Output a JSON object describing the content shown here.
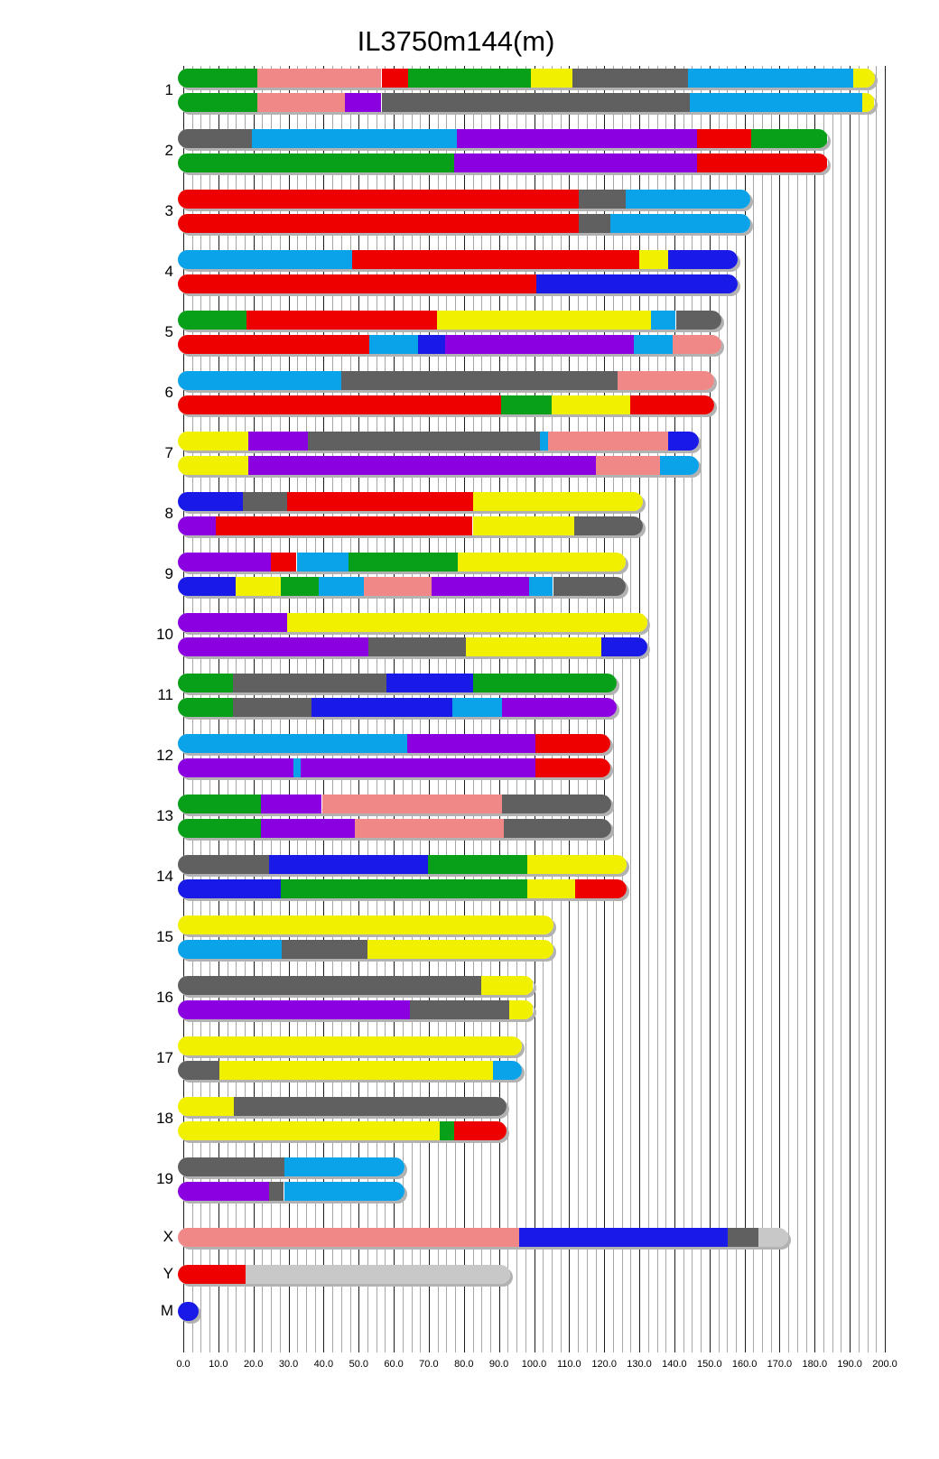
{
  "title": "IL3750m144(m)",
  "chart_data": {
    "type": "bar",
    "subtype": "genome-haplotype-ideogram",
    "x_axis": {
      "min": 0,
      "max": 200,
      "major_step": 10,
      "minor_step": 2.5,
      "tick_labels": [
        "0.0",
        "10.0",
        "20.0",
        "30.0",
        "40.0",
        "50.0",
        "60.0",
        "70.0",
        "80.0",
        "90.0",
        "100.0",
        "110.0",
        "120.0",
        "130.0",
        "140.0",
        "150.0",
        "160.0",
        "170.0",
        "180.0",
        "190.0",
        "200.0"
      ]
    },
    "palette": {
      "yellow": "#F0F000",
      "gray": "#606060",
      "pink": "#F08888",
      "blue": "#1A1AE8",
      "sky": "#0AA2E8",
      "green": "#08A018",
      "red": "#EE0000",
      "purple": "#8A00E0",
      "lightgray": "#C8C8C8"
    },
    "grid": true,
    "legend": false,
    "chromosomes": [
      {
        "name": "1",
        "length": 195.5,
        "bars": [
          [
            {
              "c": "green",
              "e": 21
            },
            {
              "c": "pink",
              "e": 56.5
            },
            {
              "c": "red",
              "e": 64
            },
            {
              "c": "green",
              "e": 99
            },
            {
              "c": "yellow",
              "e": 111
            },
            {
              "c": "gray",
              "e": 144
            },
            {
              "c": "sky",
              "e": 191
            },
            {
              "c": "yellow",
              "e": 195.5
            }
          ],
          [
            {
              "c": "green",
              "e": 21
            },
            {
              "c": "pink",
              "e": 46
            },
            {
              "c": "purple",
              "e": 56.5
            },
            {
              "c": "gray",
              "e": 144.5
            },
            {
              "c": "sky",
              "e": 193.5
            },
            {
              "c": "yellow",
              "e": 195.5
            }
          ]
        ]
      },
      {
        "name": "2",
        "length": 182.1,
        "bars": [
          [
            {
              "c": "gray",
              "e": 19.6
            },
            {
              "c": "sky",
              "e": 78
            },
            {
              "c": "purple",
              "e": 146.4
            },
            {
              "c": "red",
              "e": 161.8
            },
            {
              "c": "green",
              "e": 182.1
            }
          ],
          [
            {
              "c": "green",
              "e": 77.3
            },
            {
              "c": "purple",
              "e": 146.4
            },
            {
              "c": "red",
              "e": 182.1
            }
          ]
        ]
      },
      {
        "name": "3",
        "length": 160,
        "bars": [
          [
            {
              "c": "red",
              "e": 112.6
            },
            {
              "c": "gray",
              "e": 126.2
            },
            {
              "c": "sky",
              "e": 160
            }
          ],
          [
            {
              "c": "red",
              "e": 112.6
            },
            {
              "c": "gray",
              "e": 121.7
            },
            {
              "c": "sky",
              "e": 160
            }
          ]
        ]
      },
      {
        "name": "4",
        "length": 156.5,
        "bars": [
          [
            {
              "c": "sky",
              "e": 48.2
            },
            {
              "c": "red",
              "e": 129.9
            },
            {
              "c": "yellow",
              "e": 138.3
            },
            {
              "c": "blue",
              "e": 156.5
            }
          ],
          [
            {
              "c": "red",
              "e": 100.7
            },
            {
              "c": "blue",
              "e": 156.5
            }
          ]
        ]
      },
      {
        "name": "5",
        "length": 151.8,
        "bars": [
          [
            {
              "c": "green",
              "e": 18.1
            },
            {
              "c": "red",
              "e": 72.4
            },
            {
              "c": "yellow",
              "e": 133.4
            },
            {
              "c": "sky",
              "e": 140.4
            },
            {
              "c": "gray",
              "e": 151.8
            }
          ],
          [
            {
              "c": "red",
              "e": 53
            },
            {
              "c": "sky",
              "e": 67
            },
            {
              "c": "blue",
              "e": 74.7
            },
            {
              "c": "purple",
              "e": 128.5
            },
            {
              "c": "sky",
              "e": 139.5
            },
            {
              "c": "pink",
              "e": 151.8
            }
          ]
        ]
      },
      {
        "name": "6",
        "length": 149.7,
        "bars": [
          [
            {
              "c": "sky",
              "e": 45.1
            },
            {
              "c": "gray",
              "e": 123.7
            },
            {
              "c": "pink",
              "e": 149.7
            }
          ],
          [
            {
              "c": "red",
              "e": 90.6
            },
            {
              "c": "green",
              "e": 104.9
            },
            {
              "c": "yellow",
              "e": 127.3
            },
            {
              "c": "red",
              "e": 149.7
            }
          ]
        ]
      },
      {
        "name": "7",
        "length": 145.4,
        "bars": [
          [
            {
              "c": "yellow",
              "e": 18.4
            },
            {
              "c": "purple",
              "e": 35.6
            },
            {
              "c": "gray",
              "e": 101.6
            },
            {
              "c": "sky",
              "e": 104.1
            },
            {
              "c": "pink",
              "e": 138.2
            },
            {
              "c": "blue",
              "e": 145.4
            }
          ],
          [
            {
              "c": "yellow",
              "e": 18.4
            },
            {
              "c": "purple",
              "e": 117.6
            },
            {
              "c": "pink",
              "e": 136
            },
            {
              "c": "sky",
              "e": 145.4
            }
          ]
        ]
      },
      {
        "name": "8",
        "length": 129.4,
        "bars": [
          [
            {
              "c": "blue",
              "e": 17
            },
            {
              "c": "gray",
              "e": 29.6
            },
            {
              "c": "red",
              "e": 82.5
            },
            {
              "c": "yellow",
              "e": 129.4
            }
          ],
          [
            {
              "c": "purple",
              "e": 9.3
            },
            {
              "c": "red",
              "e": 82.5
            },
            {
              "c": "yellow",
              "e": 111.4
            },
            {
              "c": "gray",
              "e": 129.4
            }
          ]
        ]
      },
      {
        "name": "9",
        "length": 124.6,
        "bars": [
          [
            {
              "c": "purple",
              "e": 24.9
            },
            {
              "c": "red",
              "e": 32.3
            },
            {
              "c": "sky",
              "e": 47
            },
            {
              "c": "green",
              "e": 78.2
            },
            {
              "c": "yellow",
              "e": 124.6
            }
          ],
          [
            {
              "c": "blue",
              "e": 15
            },
            {
              "c": "yellow",
              "e": 27.8
            },
            {
              "c": "green",
              "e": 38.7
            },
            {
              "c": "sky",
              "e": 51.5
            },
            {
              "c": "pink",
              "e": 70.8
            },
            {
              "c": "purple",
              "e": 98.7
            },
            {
              "c": "sky",
              "e": 105.4
            },
            {
              "c": "gray",
              "e": 124.6
            }
          ]
        ]
      },
      {
        "name": "10",
        "length": 130.7,
        "bars": [
          [
            {
              "c": "purple",
              "e": 29.7
            },
            {
              "c": "yellow",
              "e": 130.7
            }
          ],
          [
            {
              "c": "purple",
              "e": 52.8
            },
            {
              "c": "gray",
              "e": 80.6
            },
            {
              "c": "yellow",
              "e": 119.1
            },
            {
              "c": "blue",
              "e": 130.7
            }
          ]
        ]
      },
      {
        "name": "11",
        "length": 122.1,
        "bars": [
          [
            {
              "c": "green",
              "e": 14.1
            },
            {
              "c": "gray",
              "e": 57.8
            },
            {
              "c": "blue",
              "e": 82.5
            },
            {
              "c": "green",
              "e": 122.1
            }
          ],
          [
            {
              "c": "green",
              "e": 14.1
            },
            {
              "c": "gray",
              "e": 36.5
            },
            {
              "c": "blue",
              "e": 76.7
            },
            {
              "c": "sky",
              "e": 90.9
            },
            {
              "c": "purple",
              "e": 122.1
            }
          ]
        ]
      },
      {
        "name": "12",
        "length": 120.1,
        "bars": [
          [
            {
              "c": "sky",
              "e": 63.9
            },
            {
              "c": "purple",
              "e": 100.3
            },
            {
              "c": "red",
              "e": 120.1
            }
          ],
          [
            {
              "c": "purple",
              "e": 31.5
            },
            {
              "c": "sky",
              "e": 33.4
            },
            {
              "c": "purple",
              "e": 100.3
            },
            {
              "c": "red",
              "e": 120.1
            }
          ]
        ]
      },
      {
        "name": "13",
        "length": 120.4,
        "bars": [
          [
            {
              "c": "green",
              "e": 22.1
            },
            {
              "c": "purple",
              "e": 39.5
            },
            {
              "c": "pink",
              "e": 90.9
            },
            {
              "c": "gray",
              "e": 120.4
            }
          ],
          [
            {
              "c": "green",
              "e": 22.1
            },
            {
              "c": "purple",
              "e": 48.8
            },
            {
              "c": "pink",
              "e": 91.3
            },
            {
              "c": "gray",
              "e": 120.4
            }
          ]
        ]
      },
      {
        "name": "14",
        "length": 124.9,
        "bars": [
          [
            {
              "c": "gray",
              "e": 24.4
            },
            {
              "c": "blue",
              "e": 69.7
            },
            {
              "c": "green",
              "e": 98
            },
            {
              "c": "yellow",
              "e": 124.9
            }
          ],
          [
            {
              "c": "blue",
              "e": 27.9
            },
            {
              "c": "green",
              "e": 98
            },
            {
              "c": "yellow",
              "e": 111.8
            },
            {
              "c": "red",
              "e": 124.9
            }
          ]
        ]
      },
      {
        "name": "15",
        "length": 104,
        "bars": [
          [
            {
              "c": "yellow",
              "e": 104
            }
          ],
          [
            {
              "c": "sky",
              "e": 28
            },
            {
              "c": "gray",
              "e": 52.4
            },
            {
              "c": "yellow",
              "e": 104
            }
          ]
        ]
      },
      {
        "name": "16",
        "length": 98.2,
        "bars": [
          [
            {
              "c": "gray",
              "e": 84.9
            },
            {
              "c": "yellow",
              "e": 98.2
            }
          ],
          [
            {
              "c": "purple",
              "e": 64.5
            },
            {
              "c": "gray",
              "e": 92.9
            },
            {
              "c": "yellow",
              "e": 98.2
            }
          ]
        ]
      },
      {
        "name": "17",
        "length": 95,
        "bars": [
          [
            {
              "c": "yellow",
              "e": 95
            }
          ],
          [
            {
              "c": "gray",
              "e": 10.2
            },
            {
              "c": "yellow",
              "e": 88.3
            },
            {
              "c": "sky",
              "e": 95
            }
          ]
        ]
      },
      {
        "name": "18",
        "length": 90.7,
        "bars": [
          [
            {
              "c": "yellow",
              "e": 14.4
            },
            {
              "c": "gray",
              "e": 90.7
            }
          ],
          [
            {
              "c": "yellow",
              "e": 73
            },
            {
              "c": "green",
              "e": 77.2
            },
            {
              "c": "red",
              "e": 90.7
            }
          ]
        ]
      },
      {
        "name": "19",
        "length": 61.4,
        "bars": [
          [
            {
              "c": "gray",
              "e": 28.7
            },
            {
              "c": "sky",
              "e": 61.4
            }
          ],
          [
            {
              "c": "purple",
              "e": 24.4
            },
            {
              "c": "gray",
              "e": 28.7
            },
            {
              "c": "sky",
              "e": 61.4
            }
          ]
        ]
      },
      {
        "name": "X",
        "length": 171,
        "bars": [
          [
            {
              "c": "pink",
              "e": 95.7
            },
            {
              "c": "blue",
              "e": 155.1
            },
            {
              "c": "gray",
              "e": 163.9
            },
            {
              "c": "lightgray",
              "e": 171
            }
          ]
        ]
      },
      {
        "name": "Y",
        "length": 91.7,
        "bars": [
          [
            {
              "c": "red",
              "e": 17.8
            },
            {
              "c": "lightgray",
              "e": 91.7
            }
          ]
        ]
      },
      {
        "name": "M",
        "length": 2.8,
        "bars": [
          [
            {
              "c": "blue",
              "e": 2.8
            }
          ]
        ]
      }
    ]
  }
}
